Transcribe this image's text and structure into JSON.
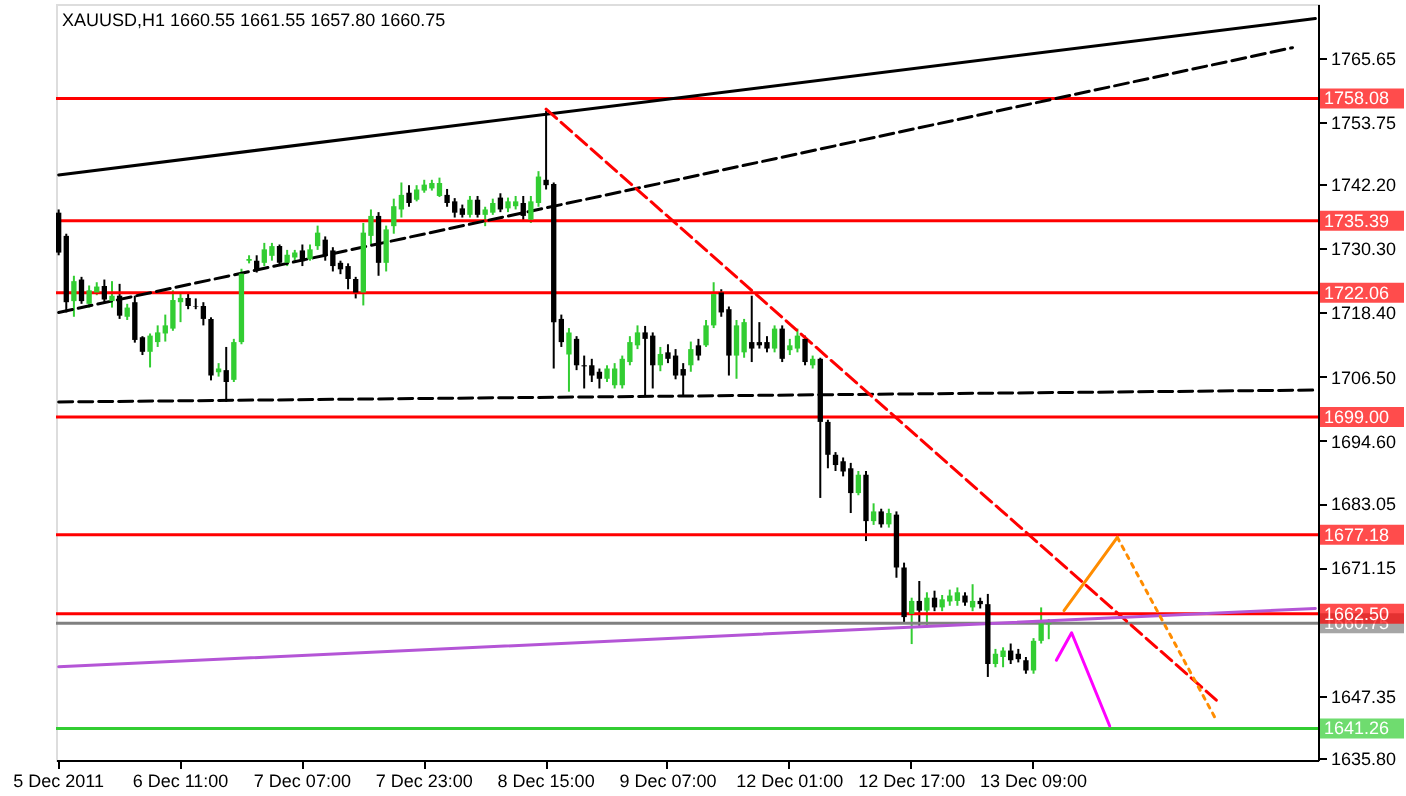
{
  "chart_data": {
    "type": "candlestick",
    "title": "XAUUSD,H1  1660.55 1661.55 1657.80 1660.75",
    "categories": [
      "5 Dec 2011",
      null,
      null,
      null,
      null,
      null,
      null,
      null,
      null,
      null,
      null,
      null,
      null,
      null,
      null,
      null,
      "6 Dec 11:00",
      null,
      null,
      null,
      null,
      null,
      null,
      null,
      null,
      null,
      null,
      null,
      null,
      null,
      null,
      null,
      "7 Dec 07:00",
      null,
      null,
      null,
      null,
      null,
      null,
      null,
      null,
      null,
      null,
      null,
      null,
      null,
      null,
      null,
      "7 Dec 23:00",
      null,
      null,
      null,
      null,
      null,
      null,
      null,
      null,
      null,
      null,
      null,
      null,
      null,
      null,
      null,
      "8 Dec 15:00",
      null,
      null,
      null,
      null,
      null,
      null,
      null,
      null,
      null,
      null,
      null,
      null,
      null,
      null,
      null,
      "9 Dec 07:00",
      null,
      null,
      null,
      null,
      null,
      null,
      null,
      null,
      null,
      null,
      null,
      null,
      null,
      null,
      null,
      "12 Dec 01:00",
      null,
      null,
      null,
      null,
      null,
      null,
      null,
      null,
      null,
      null,
      null,
      null,
      null,
      null,
      null,
      "12 Dec 17:00",
      null,
      null,
      null,
      null,
      null,
      null,
      null,
      null,
      null,
      null,
      null,
      null,
      null,
      null,
      null,
      "13 Dec 09:00",
      null,
      null,
      null,
      null,
      null,
      null,
      null,
      null,
      null,
      null,
      null,
      null,
      null,
      null,
      null,
      null,
      null,
      null,
      null,
      null,
      null,
      null,
      null,
      null,
      null,
      null,
      null,
      null,
      null,
      null,
      null,
      null,
      null,
      null,
      null,
      null,
      null
    ],
    "ohlc": [
      [
        1736.9,
        1737.5,
        1729,
        1729.5
      ],
      [
        1732.6,
        1733,
        1718.4,
        1720.3
      ],
      [
        1720.5,
        1725.2,
        1717.6,
        1724.2
      ],
      [
        1724.5,
        1725,
        1720,
        1720.5
      ],
      [
        1720,
        1723.4,
        1719.3,
        1722.5
      ],
      [
        1722.1,
        1724,
        1721.6,
        1723.2
      ],
      [
        1723.3,
        1724.5,
        1720.3,
        1720.8
      ],
      [
        1720.5,
        1724.2,
        1719.3,
        1721.5
      ],
      [
        1721.5,
        1723.7,
        1717.2,
        1717.8
      ],
      [
        1717.6,
        1720,
        1717,
        1719.3
      ],
      [
        1720.3,
        1721.5,
        1712.8,
        1713.3
      ],
      [
        1713.8,
        1714,
        1710.5,
        1711.1
      ],
      [
        1711.1,
        1714.5,
        1708.2,
        1714.1
      ],
      [
        1712.9,
        1716,
        1712,
        1714.7
      ],
      [
        1714.5,
        1718,
        1713,
        1716
      ],
      [
        1715.4,
        1722.5,
        1715,
        1720.7
      ],
      [
        1720.3,
        1722.1,
        1716.6,
        1721.1
      ],
      [
        1721.1,
        1722,
        1719,
        1719.6
      ],
      [
        1719.6,
        1721,
        1719,
        1719.5
      ],
      [
        1719.6,
        1720.3,
        1716,
        1717.2
      ],
      [
        1717.2,
        1717.5,
        1705.8,
        1706.7
      ],
      [
        1707.3,
        1709,
        1706.5,
        1708
      ],
      [
        1707.7,
        1712,
        1701.8,
        1705.5
      ],
      [
        1705.9,
        1713.5,
        1705.5,
        1712.9
      ],
      [
        1712.9,
        1726.5,
        1712.5,
        1725.6
      ],
      [
        1728,
        1729,
        1727.5,
        1728.3
      ],
      [
        1728,
        1729,
        1725.8,
        1726.4
      ],
      [
        1727.6,
        1731.3,
        1727,
        1730.1
      ],
      [
        1728.9,
        1731.3,
        1728,
        1730.7
      ],
      [
        1730.7,
        1731,
        1727,
        1727.6
      ],
      [
        1727.6,
        1730,
        1727,
        1729.1
      ],
      [
        1728.6,
        1730,
        1728,
        1729.5
      ],
      [
        1729.9,
        1731,
        1727,
        1727.9
      ],
      [
        1728.3,
        1731,
        1728,
        1730.1
      ],
      [
        1730.7,
        1734.5,
        1730,
        1733.2
      ],
      [
        1731.9,
        1732.5,
        1728,
        1728.9
      ],
      [
        1729.9,
        1730.5,
        1726,
        1727
      ],
      [
        1727.6,
        1728,
        1725.5,
        1726.4
      ],
      [
        1727,
        1727.5,
        1722.7,
        1724.6
      ],
      [
        1724.6,
        1725,
        1721,
        1722.1
      ],
      [
        1722.1,
        1735,
        1719.7,
        1733.2
      ],
      [
        1732.6,
        1737.5,
        1731,
        1736.3
      ],
      [
        1736.3,
        1737,
        1725.2,
        1727.6
      ],
      [
        1727.6,
        1734.5,
        1726,
        1733.8
      ],
      [
        1734.4,
        1739.5,
        1733,
        1738.1
      ],
      [
        1737.5,
        1742.5,
        1736,
        1740.2
      ],
      [
        1740.6,
        1742,
        1738,
        1738.7
      ],
      [
        1739.3,
        1742,
        1739,
        1741.2
      ],
      [
        1741,
        1743,
        1740.6,
        1742.1
      ],
      [
        1741.4,
        1743,
        1741,
        1742.4
      ],
      [
        1740,
        1743.4,
        1739.8,
        1742.4
      ],
      [
        1740.2,
        1741.3,
        1738,
        1738.7
      ],
      [
        1739,
        1739.6,
        1736,
        1736.9
      ],
      [
        1737.7,
        1738.4,
        1736,
        1736.5
      ],
      [
        1736.5,
        1740,
        1736,
        1739.3
      ],
      [
        1739.3,
        1740,
        1736,
        1736.5
      ],
      [
        1736.5,
        1738,
        1734.4,
        1737.5
      ],
      [
        1736.9,
        1739.5,
        1736.5,
        1738.7
      ],
      [
        1739.7,
        1740.5,
        1737,
        1737.5
      ],
      [
        1737.7,
        1739.7,
        1737,
        1739
      ],
      [
        1738.1,
        1740,
        1737.5,
        1739
      ],
      [
        1738.7,
        1740,
        1735.5,
        1736.3
      ],
      [
        1735.6,
        1740,
        1735,
        1739
      ],
      [
        1738.7,
        1744.6,
        1738,
        1743.6
      ],
      [
        1743,
        1755.8,
        1741.2,
        1742
      ],
      [
        1742.2,
        1742.5,
        1708,
        1716.6
      ],
      [
        1717.2,
        1718,
        1712,
        1712.9
      ],
      [
        1710.6,
        1715.5,
        1703.7,
        1714.7
      ],
      [
        1713.5,
        1714,
        1707.7,
        1708.6
      ],
      [
        1708.6,
        1710.4,
        1704.3,
        1708.4
      ],
      [
        1708.6,
        1709.8,
        1705.5,
        1706.7
      ],
      [
        1707.4,
        1708,
        1704.3,
        1706.1
      ],
      [
        1706.1,
        1708.6,
        1705.5,
        1708
      ],
      [
        1704.9,
        1709,
        1704.3,
        1708
      ],
      [
        1704.9,
        1710.4,
        1704.3,
        1709.8
      ],
      [
        1709.2,
        1714,
        1708.6,
        1712.9
      ],
      [
        1712.3,
        1716,
        1711.6,
        1714.7
      ],
      [
        1714.7,
        1715.9,
        1703,
        1713.5
      ],
      [
        1714.1,
        1714.7,
        1704.3,
        1708.6
      ],
      [
        1708.6,
        1712,
        1707.5,
        1710.7
      ],
      [
        1711,
        1712.5,
        1709,
        1709.8
      ],
      [
        1710.4,
        1711.6,
        1706,
        1706.7
      ],
      [
        1707.9,
        1709,
        1703,
        1706.7
      ],
      [
        1708.6,
        1713,
        1707.4,
        1711.6
      ],
      [
        1712.3,
        1713.5,
        1709.5,
        1710.4
      ],
      [
        1712.3,
        1717,
        1712,
        1716
      ],
      [
        1716,
        1724,
        1715.5,
        1721.8
      ],
      [
        1722.1,
        1722.7,
        1717.6,
        1718.4
      ],
      [
        1719,
        1719.5,
        1706.7,
        1710.4
      ],
      [
        1710.4,
        1717,
        1706.1,
        1716
      ],
      [
        1711,
        1717.2,
        1710,
        1716.6
      ],
      [
        1712.9,
        1721.5,
        1709.2,
        1711.7
      ],
      [
        1712.9,
        1716.6,
        1711.7,
        1712.3
      ],
      [
        1712.9,
        1714,
        1711,
        1711.7
      ],
      [
        1711.7,
        1716,
        1711,
        1715.4
      ],
      [
        1715.4,
        1716,
        1709.2,
        1709.8
      ],
      [
        1711.4,
        1713.5,
        1710.5,
        1712.3
      ],
      [
        1711.7,
        1715.4,
        1711,
        1714.1
      ],
      [
        1713.5,
        1714.1,
        1708.6,
        1709.2
      ],
      [
        1708.6,
        1710.4,
        1708,
        1709.8
      ],
      [
        1709.8,
        1710,
        1684,
        1698.1
      ],
      [
        1698.1,
        1698.5,
        1689.5,
        1692
      ],
      [
        1692,
        1692.5,
        1689,
        1690.1
      ],
      [
        1690.8,
        1691.5,
        1688,
        1688.9
      ],
      [
        1689.5,
        1690.5,
        1681.2,
        1684.9
      ],
      [
        1684.9,
        1689,
        1684.5,
        1688.3
      ],
      [
        1688.3,
        1689,
        1676,
        1679.7
      ],
      [
        1679.7,
        1683,
        1679,
        1681.5
      ],
      [
        1681.5,
        1682,
        1678.5,
        1679.1
      ],
      [
        1679.1,
        1682,
        1678.5,
        1681.2
      ],
      [
        1680.9,
        1681.5,
        1669.2,
        1671.1
      ],
      [
        1671.1,
        1672,
        1661,
        1661.9
      ],
      [
        1662.5,
        1665.5,
        1656.9,
        1664.9
      ],
      [
        1664.9,
        1668.6,
        1660.3,
        1663.1
      ],
      [
        1663.1,
        1666.5,
        1660,
        1665.5
      ],
      [
        1665.5,
        1666.8,
        1663,
        1663.7
      ],
      [
        1663.7,
        1666,
        1663,
        1665.2
      ],
      [
        1664.8,
        1667,
        1664,
        1665.9
      ],
      [
        1664.9,
        1667.4,
        1664,
        1666.5
      ],
      [
        1665.9,
        1666.5,
        1664,
        1664.6
      ],
      [
        1663.7,
        1668,
        1663,
        1664.9
      ],
      [
        1664.9,
        1665.5,
        1663.5,
        1664.3
      ],
      [
        1664.3,
        1666.2,
        1650.8,
        1653.2
      ],
      [
        1653.2,
        1656,
        1652.6,
        1655.1
      ],
      [
        1654.5,
        1656.3,
        1652.6,
        1655.7
      ],
      [
        1655.7,
        1657,
        1653.2,
        1653.9
      ],
      [
        1655.1,
        1656,
        1653.5,
        1654.1
      ],
      [
        1653.9,
        1654.5,
        1651.4,
        1652
      ],
      [
        1652,
        1658,
        1651.4,
        1657.5
      ],
      [
        1657.5,
        1663.7,
        1657,
        1660.7
      ],
      [
        1660.55,
        1661.55,
        1657.8,
        1660.75
      ],
      null,
      null,
      null,
      null,
      null,
      null,
      null,
      null,
      null,
      null,
      null,
      null,
      null,
      null,
      null,
      null,
      null,
      null,
      null,
      null,
      null,
      null,
      null,
      null,
      null,
      null,
      null,
      null,
      null,
      null,
      null,
      null,
      null,
      null,
      null
    ],
    "series": [
      {
        "type": "line",
        "color": "#000000",
        "line_style": "solid",
        "values": [
          1743.9,
          null,
          null,
          null,
          null,
          null,
          null,
          null,
          null,
          null,
          null,
          null,
          null,
          null,
          null,
          null,
          null,
          null,
          null,
          null,
          null,
          null,
          null,
          null,
          null,
          null,
          null,
          null,
          null,
          null,
          null,
          null,
          null,
          null,
          null,
          null,
          null,
          null,
          null,
          null,
          null,
          null,
          null,
          null,
          null,
          null,
          null,
          null,
          null,
          null,
          null,
          null,
          null,
          null,
          null,
          null,
          null,
          null,
          null,
          null,
          null,
          null,
          null,
          null,
          null,
          null,
          null,
          null,
          null,
          null,
          null,
          null,
          null,
          null,
          null,
          null,
          null,
          null,
          null,
          null,
          null,
          null,
          null,
          null,
          null,
          null,
          null,
          null,
          null,
          null,
          null,
          null,
          null,
          null,
          null,
          null,
          null,
          null,
          null,
          null,
          null,
          null,
          null,
          null,
          null,
          null,
          null,
          null,
          null,
          null,
          null,
          null,
          null,
          null,
          null,
          null,
          null,
          null,
          null,
          null,
          null,
          null,
          null,
          null,
          null,
          null,
          null,
          null,
          null,
          null,
          null,
          null,
          null,
          null,
          null,
          null,
          null,
          null,
          null,
          null,
          null,
          null,
          null,
          null,
          null,
          null,
          null,
          null,
          null,
          null,
          null,
          null,
          null,
          null,
          null,
          null,
          null,
          null,
          null,
          null,
          null,
          null,
          null,
          null,
          null,
          1772.9
        ]
      },
      {
        "type": "line",
        "color": "#000000",
        "line_style": "dashed",
        "values": [
          1718.4,
          null,
          null,
          null,
          null,
          null,
          null,
          null,
          null,
          null,
          null,
          null,
          null,
          null,
          null,
          null,
          null,
          null,
          null,
          null,
          null,
          null,
          null,
          null,
          null,
          null,
          null,
          null,
          null,
          null,
          null,
          null,
          null,
          null,
          null,
          null,
          null,
          null,
          null,
          null,
          null,
          null,
          null,
          null,
          null,
          null,
          null,
          null,
          null,
          null,
          null,
          null,
          null,
          null,
          null,
          null,
          null,
          null,
          null,
          null,
          null,
          null,
          null,
          null,
          null,
          null,
          null,
          null,
          null,
          null,
          null,
          null,
          null,
          null,
          null,
          null,
          null,
          null,
          null,
          null,
          null,
          null,
          null,
          null,
          null,
          null,
          null,
          null,
          null,
          null,
          null,
          null,
          null,
          null,
          null,
          null,
          null,
          null,
          null,
          null,
          null,
          null,
          null,
          null,
          null,
          null,
          null,
          null,
          null,
          null,
          null,
          null,
          null,
          null,
          null,
          null,
          null,
          null,
          null,
          null,
          null,
          null,
          null,
          null,
          null,
          null,
          null,
          null,
          null,
          null,
          null,
          null,
          null,
          null,
          null,
          null,
          null,
          null,
          null,
          null,
          null,
          null,
          null,
          null,
          null,
          null,
          null,
          null,
          null,
          null,
          null,
          null,
          null,
          null,
          null,
          null,
          null,
          null,
          null,
          null,
          null,
          null,
          1767.5,
          null,
          null,
          null
        ]
      },
      {
        "type": "line",
        "color": "#000000",
        "line_style": "dashed",
        "values": [
          1701.8,
          null,
          null,
          null,
          null,
          null,
          null,
          null,
          null,
          null,
          null,
          null,
          null,
          null,
          null,
          null,
          null,
          null,
          null,
          null,
          null,
          null,
          null,
          null,
          null,
          null,
          null,
          null,
          null,
          null,
          null,
          null,
          null,
          null,
          null,
          null,
          null,
          null,
          null,
          null,
          null,
          null,
          null,
          null,
          null,
          null,
          null,
          null,
          null,
          null,
          null,
          null,
          null,
          null,
          null,
          null,
          null,
          null,
          null,
          null,
          null,
          null,
          null,
          null,
          null,
          null,
          null,
          null,
          null,
          null,
          null,
          null,
          null,
          null,
          null,
          null,
          null,
          null,
          null,
          null,
          null,
          null,
          null,
          null,
          null,
          null,
          null,
          null,
          null,
          null,
          null,
          null,
          null,
          null,
          null,
          null,
          null,
          null,
          null,
          null,
          null,
          null,
          null,
          null,
          null,
          null,
          null,
          null,
          null,
          null,
          null,
          null,
          null,
          null,
          null,
          null,
          null,
          null,
          null,
          null,
          null,
          null,
          null,
          null,
          null,
          null,
          null,
          null,
          null,
          null,
          null,
          null,
          null,
          null,
          null,
          null,
          null,
          null,
          null,
          null,
          null,
          null,
          null,
          null,
          null,
          null,
          null,
          null,
          null,
          null,
          null,
          null,
          null,
          null,
          null,
          null,
          null,
          null,
          null,
          null,
          null,
          null,
          null,
          null,
          null,
          1704.0
        ]
      },
      {
        "type": "line",
        "color": "#ff0000",
        "line_style": "dashed",
        "values": [
          null,
          null,
          null,
          null,
          null,
          null,
          null,
          null,
          null,
          null,
          null,
          null,
          null,
          null,
          null,
          null,
          null,
          null,
          null,
          null,
          null,
          null,
          null,
          null,
          null,
          null,
          null,
          null,
          null,
          null,
          null,
          null,
          null,
          null,
          null,
          null,
          null,
          null,
          null,
          null,
          null,
          null,
          null,
          null,
          null,
          null,
          null,
          null,
          null,
          null,
          null,
          null,
          null,
          null,
          null,
          null,
          null,
          null,
          null,
          null,
          null,
          null,
          null,
          null,
          1756.1,
          null,
          null,
          null,
          null,
          null,
          null,
          null,
          null,
          null,
          null,
          null,
          null,
          null,
          null,
          null,
          null,
          null,
          null,
          null,
          null,
          null,
          null,
          null,
          null,
          null,
          null,
          null,
          null,
          null,
          null,
          null,
          null,
          null,
          null,
          null,
          null,
          null,
          null,
          null,
          null,
          null,
          null,
          null,
          null,
          null,
          null,
          null,
          null,
          null,
          null,
          null,
          null,
          null,
          null,
          null,
          null,
          null,
          null,
          null,
          null,
          null,
          null,
          null,
          null,
          null,
          null,
          null,
          null,
          null,
          null,
          null,
          null,
          null,
          null,
          null,
          null,
          null,
          null,
          null,
          null,
          null,
          null,
          null,
          null,
          null,
          null,
          null,
          1646.5,
          null,
          null,
          null,
          null,
          null,
          null,
          null,
          null,
          null,
          null,
          null,
          null,
          null
        ]
      },
      {
        "type": "line",
        "color": "#b455d6",
        "line_style": "solid",
        "values": [
          1652.7,
          null,
          null,
          null,
          null,
          null,
          null,
          null,
          null,
          null,
          null,
          null,
          null,
          null,
          null,
          null,
          null,
          null,
          null,
          null,
          null,
          null,
          null,
          null,
          null,
          null,
          null,
          null,
          null,
          null,
          null,
          null,
          null,
          null,
          null,
          null,
          null,
          null,
          null,
          null,
          null,
          null,
          null,
          null,
          null,
          null,
          null,
          null,
          null,
          null,
          null,
          null,
          null,
          null,
          null,
          null,
          null,
          null,
          null,
          null,
          null,
          null,
          null,
          null,
          null,
          null,
          null,
          null,
          null,
          null,
          null,
          null,
          null,
          null,
          null,
          null,
          null,
          null,
          null,
          null,
          null,
          null,
          null,
          null,
          null,
          null,
          null,
          null,
          null,
          null,
          null,
          null,
          null,
          null,
          null,
          null,
          null,
          null,
          null,
          null,
          null,
          null,
          null,
          null,
          null,
          null,
          null,
          null,
          null,
          null,
          null,
          null,
          null,
          null,
          null,
          null,
          null,
          null,
          null,
          null,
          null,
          null,
          null,
          null,
          null,
          null,
          null,
          null,
          null,
          null,
          null,
          null,
          null,
          null,
          null,
          null,
          null,
          null,
          null,
          null,
          null,
          null,
          null,
          null,
          null,
          null,
          null,
          null,
          null,
          null,
          null,
          null,
          null,
          null,
          null,
          null,
          null,
          null,
          null,
          null,
          null,
          null,
          null,
          null,
          null,
          1663.5
        ]
      },
      {
        "type": "line",
        "color": "#ff8c00",
        "line_style": "solid",
        "values": [
          null,
          null,
          null,
          null,
          null,
          null,
          null,
          null,
          null,
          null,
          null,
          null,
          null,
          null,
          null,
          null,
          null,
          null,
          null,
          null,
          null,
          null,
          null,
          null,
          null,
          null,
          null,
          null,
          null,
          null,
          null,
          null,
          null,
          null,
          null,
          null,
          null,
          null,
          null,
          null,
          null,
          null,
          null,
          null,
          null,
          null,
          null,
          null,
          null,
          null,
          null,
          null,
          null,
          null,
          null,
          null,
          null,
          null,
          null,
          null,
          null,
          null,
          null,
          null,
          null,
          null,
          null,
          null,
          null,
          null,
          null,
          null,
          null,
          null,
          null,
          null,
          null,
          null,
          null,
          null,
          null,
          null,
          null,
          null,
          null,
          null,
          null,
          null,
          null,
          null,
          null,
          null,
          null,
          null,
          null,
          null,
          null,
          null,
          null,
          null,
          null,
          null,
          null,
          null,
          null,
          null,
          null,
          null,
          null,
          null,
          null,
          null,
          null,
          null,
          null,
          null,
          null,
          null,
          null,
          null,
          null,
          null,
          null,
          null,
          null,
          null,
          null,
          null,
          null,
          null,
          null,
          null,
          1663.1,
          null,
          null,
          null,
          null,
          null,
          null,
          1676.7,
          null,
          null,
          null,
          null,
          null,
          null,
          null,
          null,
          null,
          null,
          null,
          null,
          null,
          null,
          null,
          null,
          null,
          null,
          null,
          null,
          null,
          null,
          null,
          null,
          null,
          null
        ]
      },
      {
        "type": "line",
        "color": "#ff8c00",
        "line_style": "dotted",
        "values": [
          null,
          null,
          null,
          null,
          null,
          null,
          null,
          null,
          null,
          null,
          null,
          null,
          null,
          null,
          null,
          null,
          null,
          null,
          null,
          null,
          null,
          null,
          null,
          null,
          null,
          null,
          null,
          null,
          null,
          null,
          null,
          null,
          null,
          null,
          null,
          null,
          null,
          null,
          null,
          null,
          null,
          null,
          null,
          null,
          null,
          null,
          null,
          null,
          null,
          null,
          null,
          null,
          null,
          null,
          null,
          null,
          null,
          null,
          null,
          null,
          null,
          null,
          null,
          null,
          null,
          null,
          null,
          null,
          null,
          null,
          null,
          null,
          null,
          null,
          null,
          null,
          null,
          null,
          null,
          null,
          null,
          null,
          null,
          null,
          null,
          null,
          null,
          null,
          null,
          null,
          null,
          null,
          null,
          null,
          null,
          null,
          null,
          null,
          null,
          null,
          null,
          null,
          null,
          null,
          null,
          null,
          null,
          null,
          null,
          null,
          null,
          null,
          null,
          null,
          null,
          null,
          null,
          null,
          null,
          null,
          null,
          null,
          null,
          null,
          null,
          null,
          null,
          null,
          null,
          null,
          null,
          null,
          null,
          null,
          null,
          null,
          null,
          null,
          null,
          1676.7,
          null,
          null,
          null,
          null,
          null,
          null,
          null,
          null,
          null,
          null,
          null,
          null,
          1642.8,
          null,
          null,
          null,
          null,
          null,
          null,
          null,
          null,
          null,
          null,
          null,
          null,
          null
        ]
      },
      {
        "type": "line",
        "color": "#ff00ff",
        "line_style": "solid",
        "values": [
          null,
          null,
          null,
          null,
          null,
          null,
          null,
          null,
          null,
          null,
          null,
          null,
          null,
          null,
          null,
          null,
          null,
          null,
          null,
          null,
          null,
          null,
          null,
          null,
          null,
          null,
          null,
          null,
          null,
          null,
          null,
          null,
          null,
          null,
          null,
          null,
          null,
          null,
          null,
          null,
          null,
          null,
          null,
          null,
          null,
          null,
          null,
          null,
          null,
          null,
          null,
          null,
          null,
          null,
          null,
          null,
          null,
          null,
          null,
          null,
          null,
          null,
          null,
          null,
          null,
          null,
          null,
          null,
          null,
          null,
          null,
          null,
          null,
          null,
          null,
          null,
          null,
          null,
          null,
          null,
          null,
          null,
          null,
          null,
          null,
          null,
          null,
          null,
          null,
          null,
          null,
          null,
          null,
          null,
          null,
          null,
          null,
          null,
          null,
          null,
          null,
          null,
          null,
          null,
          null,
          null,
          null,
          null,
          null,
          null,
          null,
          null,
          null,
          null,
          null,
          null,
          null,
          null,
          null,
          null,
          null,
          null,
          null,
          null,
          null,
          null,
          null,
          null,
          null,
          null,
          null,
          1653.9,
          null,
          1659.0,
          null,
          null,
          null,
          null,
          1641.7,
          null,
          null,
          null,
          null,
          null,
          null,
          null,
          null,
          null,
          null,
          null,
          null,
          null,
          null,
          null,
          null,
          null,
          null,
          null,
          null,
          null,
          null,
          null,
          null,
          null,
          null,
          null
        ]
      }
    ],
    "ref_lines": [
      {
        "axis": "y",
        "value": 1758.08,
        "label": "1758.08",
        "color": "#ff0000"
      },
      {
        "axis": "y",
        "value": 1735.39,
        "label": "1735.39",
        "color": "#ff0000"
      },
      {
        "axis": "y",
        "value": 1722.06,
        "label": "1722.06",
        "color": "#ff0000"
      },
      {
        "axis": "y",
        "value": 1699.0,
        "label": "1699.00",
        "color": "#ff0000"
      },
      {
        "axis": "y",
        "value": 1677.18,
        "label": "1677.18",
        "color": "#ff0000"
      },
      {
        "axis": "y",
        "value": 1662.5,
        "label": "1662.50",
        "color": "#ff0000"
      },
      {
        "axis": "y",
        "value": 1660.75,
        "label": "1660.75",
        "color": "#808080"
      },
      {
        "axis": "y",
        "value": 1641.26,
        "label": "1641.26",
        "color": "#32cd32"
      }
    ],
    "ylim": [
      1635.4,
      1775.6
    ],
    "yticks": [
      1765.65,
      1753.75,
      {
        "value": 1742.2,
        "label": "1742.20"
      },
      {
        "value": 1730.3,
        "label": "1730.30"
      },
      {
        "value": 1718.4,
        "label": "1718.40"
      },
      {
        "value": 1706.5,
        "label": "1706.50"
      },
      {
        "value": 1694.6,
        "label": "1694.60"
      },
      1683.05,
      1671.15,
      1647.35,
      {
        "value": 1635.8,
        "label": "1635.80"
      }
    ]
  }
}
